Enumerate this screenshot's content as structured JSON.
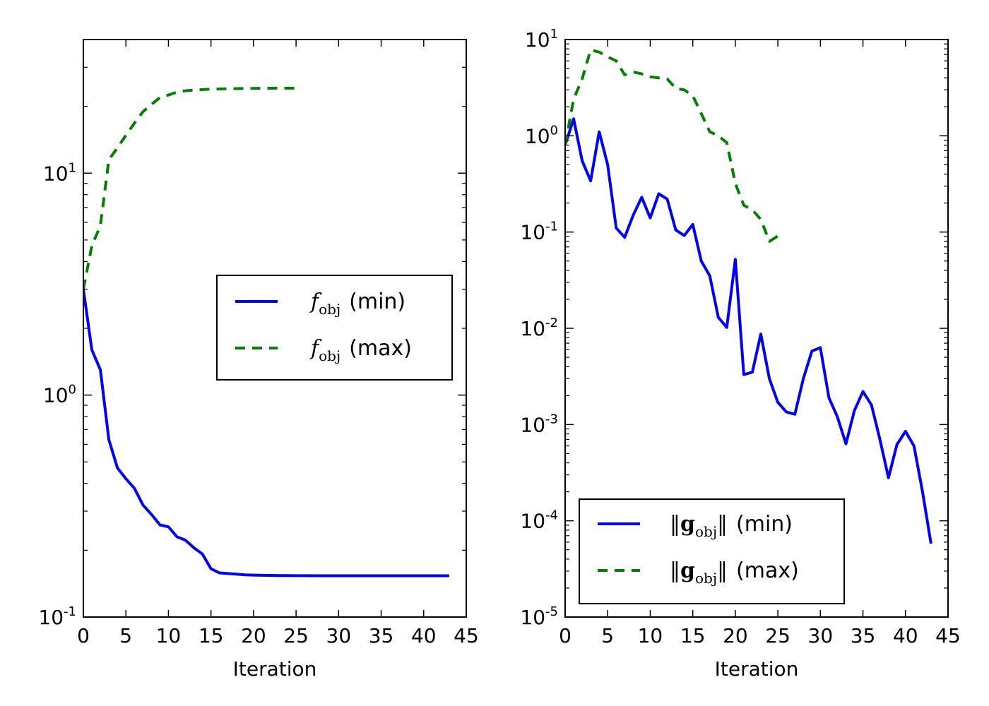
{
  "chart_data": [
    {
      "type": "line",
      "xlabel": "Iteration",
      "ylabel": "",
      "yscale": "log",
      "xlim": [
        0,
        45
      ],
      "ylim": [
        0.1,
        40
      ],
      "x_ticks": [
        0,
        5,
        10,
        15,
        20,
        25,
        30,
        35,
        40,
        45
      ],
      "y_ticks": [
        {
          "base": "10",
          "exp": "-1",
          "value": 0.1
        },
        {
          "base": "10",
          "exp": "0",
          "value": 1
        },
        {
          "base": "10",
          "exp": "1",
          "value": 10
        }
      ],
      "legend_position": "center-right",
      "series": [
        {
          "name": "f_obj (min)",
          "legend_math": "f",
          "legend_sub": "obj",
          "legend_suffix": "(min)",
          "color": "#0000ff",
          "style": "solid",
          "x": [
            0,
            1,
            2,
            3,
            4,
            5,
            6,
            7,
            8,
            9,
            10,
            11,
            12,
            13,
            14,
            15,
            16,
            17,
            18,
            19,
            20,
            21,
            22,
            23,
            24,
            25,
            26,
            27,
            28,
            29,
            30,
            31,
            32,
            33,
            34,
            35,
            36,
            37,
            38,
            39,
            40,
            41,
            42,
            43
          ],
          "y": [
            3.0,
            1.6,
            1.3,
            0.63,
            0.47,
            0.42,
            0.38,
            0.32,
            0.29,
            0.26,
            0.255,
            0.23,
            0.222,
            0.205,
            0.192,
            0.165,
            0.158,
            0.157,
            0.156,
            0.155,
            0.1545,
            0.1542,
            0.154,
            0.1538,
            0.1537,
            0.1536,
            0.1536,
            0.1535,
            0.1535,
            0.1535,
            0.1535,
            0.1535,
            0.1535,
            0.1535,
            0.1535,
            0.1535,
            0.1535,
            0.1535,
            0.1535,
            0.1535,
            0.1535,
            0.1535,
            0.1535,
            0.1535
          ]
        },
        {
          "name": "f_obj (max)",
          "legend_math": "f",
          "legend_sub": "obj",
          "legend_suffix": "(max)",
          "color": "#008000",
          "style": "dashed",
          "x": [
            0,
            1,
            2,
            3,
            4,
            5,
            6,
            7,
            8,
            9,
            10,
            11,
            12,
            13,
            14,
            15,
            16,
            17,
            18,
            19,
            20,
            21,
            22,
            23,
            24,
            25
          ],
          "y": [
            3.0,
            4.7,
            5.8,
            11.5,
            13.0,
            14.8,
            16.8,
            18.9,
            20.4,
            21.9,
            22.5,
            23.2,
            23.5,
            23.7,
            23.8,
            23.9,
            23.95,
            24.0,
            24.05,
            24.08,
            24.1,
            24.12,
            24.13,
            24.14,
            24.15,
            24.15
          ]
        }
      ]
    },
    {
      "type": "line",
      "xlabel": "Iteration",
      "ylabel": "",
      "yscale": "log",
      "xlim": [
        0,
        45
      ],
      "ylim": [
        1e-05,
        10
      ],
      "x_ticks": [
        0,
        5,
        10,
        15,
        20,
        25,
        30,
        35,
        40,
        45
      ],
      "y_ticks": [
        {
          "base": "10",
          "exp": "-5",
          "value": 1e-05
        },
        {
          "base": "10",
          "exp": "-4",
          "value": 0.0001
        },
        {
          "base": "10",
          "exp": "-3",
          "value": 0.001
        },
        {
          "base": "10",
          "exp": "-2",
          "value": 0.01
        },
        {
          "base": "10",
          "exp": "-1",
          "value": 0.1
        },
        {
          "base": "10",
          "exp": "0",
          "value": 1
        },
        {
          "base": "10",
          "exp": "1",
          "value": 10
        }
      ],
      "legend_position": "lower-left",
      "series": [
        {
          "name": "||g_obj|| (min)",
          "legend_bold": "g",
          "legend_sub": "obj",
          "legend_suffix": "(min)",
          "color": "#0000ff",
          "style": "solid",
          "x": [
            0,
            1,
            2,
            3,
            4,
            5,
            6,
            7,
            8,
            9,
            10,
            11,
            12,
            13,
            14,
            15,
            16,
            17,
            18,
            19,
            20,
            21,
            22,
            23,
            24,
            25,
            26,
            27,
            28,
            29,
            30,
            31,
            32,
            33,
            34,
            35,
            36,
            37,
            38,
            39,
            40,
            41,
            42,
            43
          ],
          "y": [
            0.8,
            1.5,
            0.55,
            0.34,
            1.1,
            0.5,
            0.11,
            0.088,
            0.15,
            0.23,
            0.14,
            0.25,
            0.22,
            0.105,
            0.092,
            0.12,
            0.05,
            0.035,
            0.013,
            0.0102,
            0.052,
            0.0033,
            0.0035,
            0.0087,
            0.003,
            0.0017,
            0.00135,
            0.00128,
            0.003,
            0.0058,
            0.0063,
            0.0019,
            0.0012,
            0.00063,
            0.0014,
            0.0022,
            0.0016,
            0.0007,
            0.00028,
            0.00062,
            0.00085,
            0.0006,
            0.0002,
            5.8e-05
          ]
        },
        {
          "name": "||g_obj|| (max)",
          "legend_bold": "g",
          "legend_sub": "obj",
          "legend_suffix": "(max)",
          "color": "#008000",
          "style": "dashed",
          "x": [
            0,
            1,
            2,
            3,
            4,
            5,
            6,
            7,
            8,
            9,
            10,
            11,
            12,
            13,
            14,
            15,
            16,
            17,
            18,
            19,
            20,
            21,
            22,
            23,
            24,
            25
          ],
          "y": [
            0.8,
            2.4,
            3.9,
            7.8,
            7.4,
            6.6,
            6.0,
            4.3,
            4.6,
            4.4,
            4.1,
            4.0,
            3.9,
            3.1,
            3.0,
            2.6,
            1.7,
            1.1,
            1.0,
            0.85,
            0.32,
            0.19,
            0.17,
            0.135,
            0.08,
            0.091
          ]
        }
      ]
    }
  ]
}
